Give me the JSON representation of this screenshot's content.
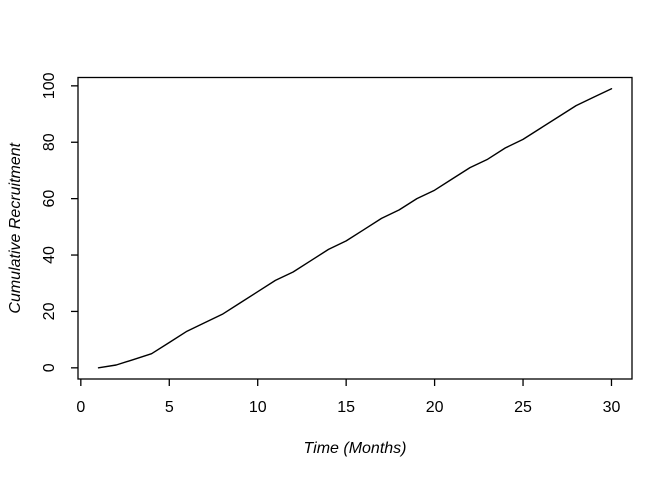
{
  "chart_data": {
    "type": "line",
    "title": "",
    "xlabel": "Time (Months)",
    "ylabel": "Cumulative Recruitment",
    "x": [
      1,
      2,
      3,
      4,
      5,
      6,
      7,
      8,
      9,
      10,
      11,
      12,
      13,
      14,
      15,
      16,
      17,
      18,
      19,
      20,
      21,
      22,
      23,
      24,
      25,
      26,
      27,
      28,
      29,
      30
    ],
    "values": [
      0,
      1,
      3,
      5,
      9,
      13,
      16,
      19,
      23,
      27,
      31,
      34,
      38,
      42,
      45,
      49,
      53,
      56,
      60,
      63,
      67,
      71,
      74,
      78,
      81,
      85,
      89,
      93,
      96,
      99
    ],
    "x_ticks": [
      0,
      5,
      10,
      15,
      20,
      25,
      30
    ],
    "y_ticks": [
      0,
      20,
      40,
      60,
      80,
      100
    ],
    "xlim": [
      -0.16,
      31.16
    ],
    "ylim": [
      -3.96,
      102.96
    ],
    "line_color": "#000000",
    "axis_color": "#000000",
    "background_color": "#ffffff",
    "grid": "off",
    "legend": "none"
  }
}
